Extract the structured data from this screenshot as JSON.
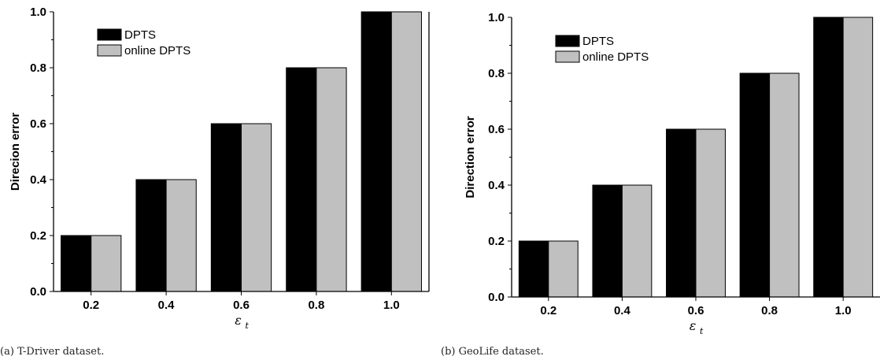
{
  "chart_data": [
    {
      "type": "bar",
      "categories": [
        "0.2",
        "0.4",
        "0.6",
        "0.8",
        "1.0"
      ],
      "series": [
        {
          "name": "DPTS",
          "values": [
            0.2,
            0.4,
            0.6,
            0.8,
            1.0
          ],
          "color": "#000000"
        },
        {
          "name": "online DPTS",
          "values": [
            0.2,
            0.4,
            0.6,
            0.8,
            1.0
          ],
          "color": "#c0c0c0"
        }
      ],
      "ylabel": "Direcion error",
      "xlabel_symbol": "ε",
      "xlabel_subscript": "t",
      "ylim": [
        0,
        1.0
      ],
      "yticks": [
        "0.0",
        "0.2",
        "0.4",
        "0.6",
        "0.8",
        "1.0"
      ],
      "legend": "top-left",
      "caption": "(a) T-Driver dataset."
    },
    {
      "type": "bar",
      "categories": [
        "0.2",
        "0.4",
        "0.6",
        "0.8",
        "1.0"
      ],
      "series": [
        {
          "name": "DPTS",
          "values": [
            0.2,
            0.4,
            0.6,
            0.8,
            1.0
          ],
          "color": "#000000"
        },
        {
          "name": "online DPTS",
          "values": [
            0.2,
            0.4,
            0.6,
            0.8,
            1.0
          ],
          "color": "#c0c0c0"
        }
      ],
      "ylabel": "Direction error",
      "xlabel_symbol": "ε",
      "xlabel_subscript": "t",
      "ylim": [
        0,
        1.0
      ],
      "yticks": [
        "0.0",
        "0.2",
        "0.4",
        "0.6",
        "0.8",
        "1.0"
      ],
      "legend": "top-left",
      "caption": "(b) GeoLife dataset."
    }
  ]
}
